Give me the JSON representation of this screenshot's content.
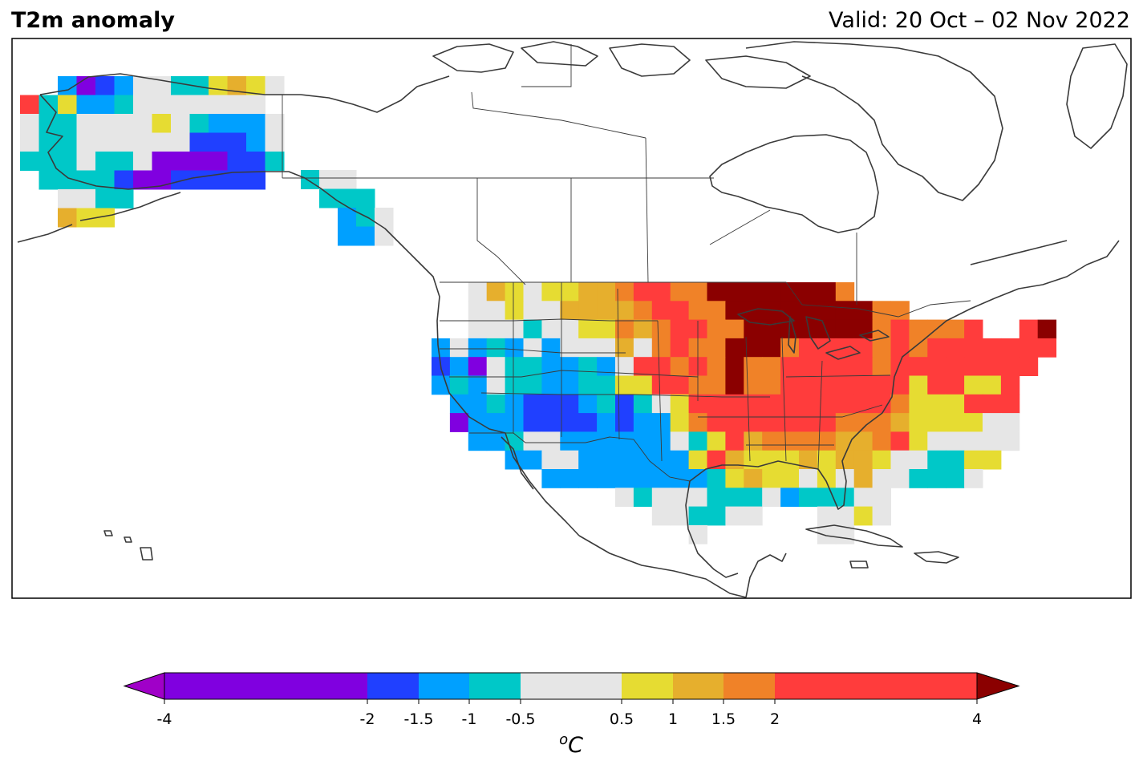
{
  "header": {
    "title": "T2m anomaly",
    "valid": "Valid: 20 Oct – 02 Nov 2022"
  },
  "colors": {
    "coast": "#3a3a3a",
    "border": "#3a3a3a",
    "frame": "#000000"
  },
  "colorbar": {
    "unit_base": "C",
    "unit_sup": "o",
    "bins": [
      {
        "lo": -4,
        "hi": -2,
        "color": "#8000e0"
      },
      {
        "lo": -2,
        "hi": -1.5,
        "color": "#2040ff"
      },
      {
        "lo": -1.5,
        "hi": -1,
        "color": "#00a0ff"
      },
      {
        "lo": -1,
        "hi": -0.5,
        "color": "#00c8c8"
      },
      {
        "lo": -0.5,
        "hi": 0.5,
        "color": "#e6e6e6"
      },
      {
        "lo": 0.5,
        "hi": 1,
        "color": "#e6dc32"
      },
      {
        "lo": 1,
        "hi": 1.5,
        "color": "#e6af2d"
      },
      {
        "lo": 1.5,
        "hi": 2,
        "color": "#f08228"
      },
      {
        "lo": 2,
        "hi": 4,
        "color": "#ff3c3c"
      }
    ],
    "under_color": "#a000c8",
    "over_color": "#8b0000",
    "ticks": [
      "-4",
      "-2",
      "-1.5",
      "-1",
      "-0.5",
      "0.5",
      "1",
      "1.5",
      "2",
      "4"
    ]
  },
  "legend_keys": {
    "P": "purple (< -2)",
    "B": "blue (-2 to -1.5)",
    "L": "light blue (-1.5 to -1)",
    "C": "cyan (-1 to -0.5)",
    "G": "grey (-0.5 to 0.5)",
    "Y": "yellow (0.5 to 1)",
    "O": "gold (1 to 1.5)",
    "R": "orange (1.5 to 2)",
    "E": "red (2 to 4)",
    "D": "dark red (> 4)"
  },
  "map_data": {
    "alaska": [
      "..LPBLGGCCYOYG",
      "ECYLLCGGGGGGG.",
      "GCCGGGGYGCLLLG",
      "GCCGGGGGGBBBLG",
      "CCCGCCGPPPPBBC",
      ".CCCCBPPBBBBB.",
      "..GGCC........",
      "..OYY........."
    ],
    "panhandle": [
      "CGG.",
      ".CCC",
      "..LCG",
      "..LLG"
    ],
    "conus": [
      "..GOYGYYOOREERRDDDDDDDR...........",
      "..GGYGGOOOOREERRDDDDDDDDRR.........",
      "..GGGCGGYYROREERRDDDDDDDRERRRE..ED",
      "LGLCLGLGGGOGRERRDDDREEEEREREEEEEEE",
      "BLPGCCLLCLGEERERDRREEEEEREEEEEEEE.",
      "LCLGCCLLCCYYEERRDRREEEEEEEYEEYYE..",
      ".LLCLBBBLCBCGYEEEEEEEEEEERYYYEEE..",
      ".PLLLBBBBLBLLYREEEEEEERRROYYYYGG..",
      "..LLCGGLLLLLLGCYEORRRROOREYGGGGG..",
      "....LLGGLLLLLLYEOYYYOYOOYGGCCYY...",
      "......LLLLLLLLLCYOYYGYGOGGCCCG....",
      "..........GCGGGCCCGLCCCGG.........",
      "............GGCCGG...GGYG..........",
      "..............G......GG..........."
    ]
  }
}
